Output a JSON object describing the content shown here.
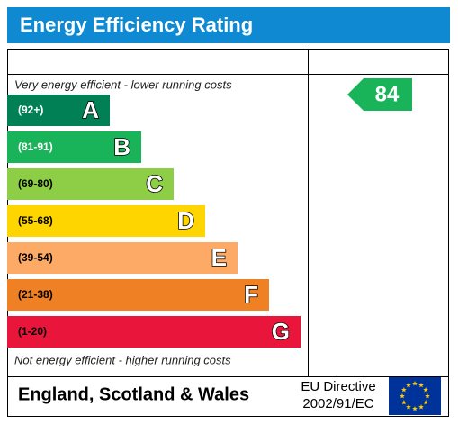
{
  "title": "Energy Efficiency Rating",
  "top_label": "Very energy efficient - lower running costs",
  "bottom_label": "Not energy efficient - higher running costs",
  "bands": [
    {
      "range": "(92+)",
      "letter": "A",
      "color": "#008054",
      "text_color": "#ffffff"
    },
    {
      "range": "(81-91)",
      "letter": "B",
      "color": "#19b459",
      "text_color": "#ffffff"
    },
    {
      "range": "(69-80)",
      "letter": "C",
      "color": "#8dce46",
      "text_color": "#000000"
    },
    {
      "range": "(55-68)",
      "letter": "D",
      "color": "#ffd500",
      "text_color": "#000000"
    },
    {
      "range": "(39-54)",
      "letter": "E",
      "color": "#fcaa65",
      "text_color": "#000000"
    },
    {
      "range": "(21-38)",
      "letter": "F",
      "color": "#ef8023",
      "text_color": "#000000"
    },
    {
      "range": "(1-20)",
      "letter": "G",
      "color": "#e9153b",
      "text_color": "#000000"
    }
  ],
  "current": {
    "value": 84,
    "color": "#19b459"
  },
  "footer": {
    "region": "England, Scotland & Wales",
    "directive_line1": "EU Directive",
    "directive_line2": "2002/91/EC"
  }
}
